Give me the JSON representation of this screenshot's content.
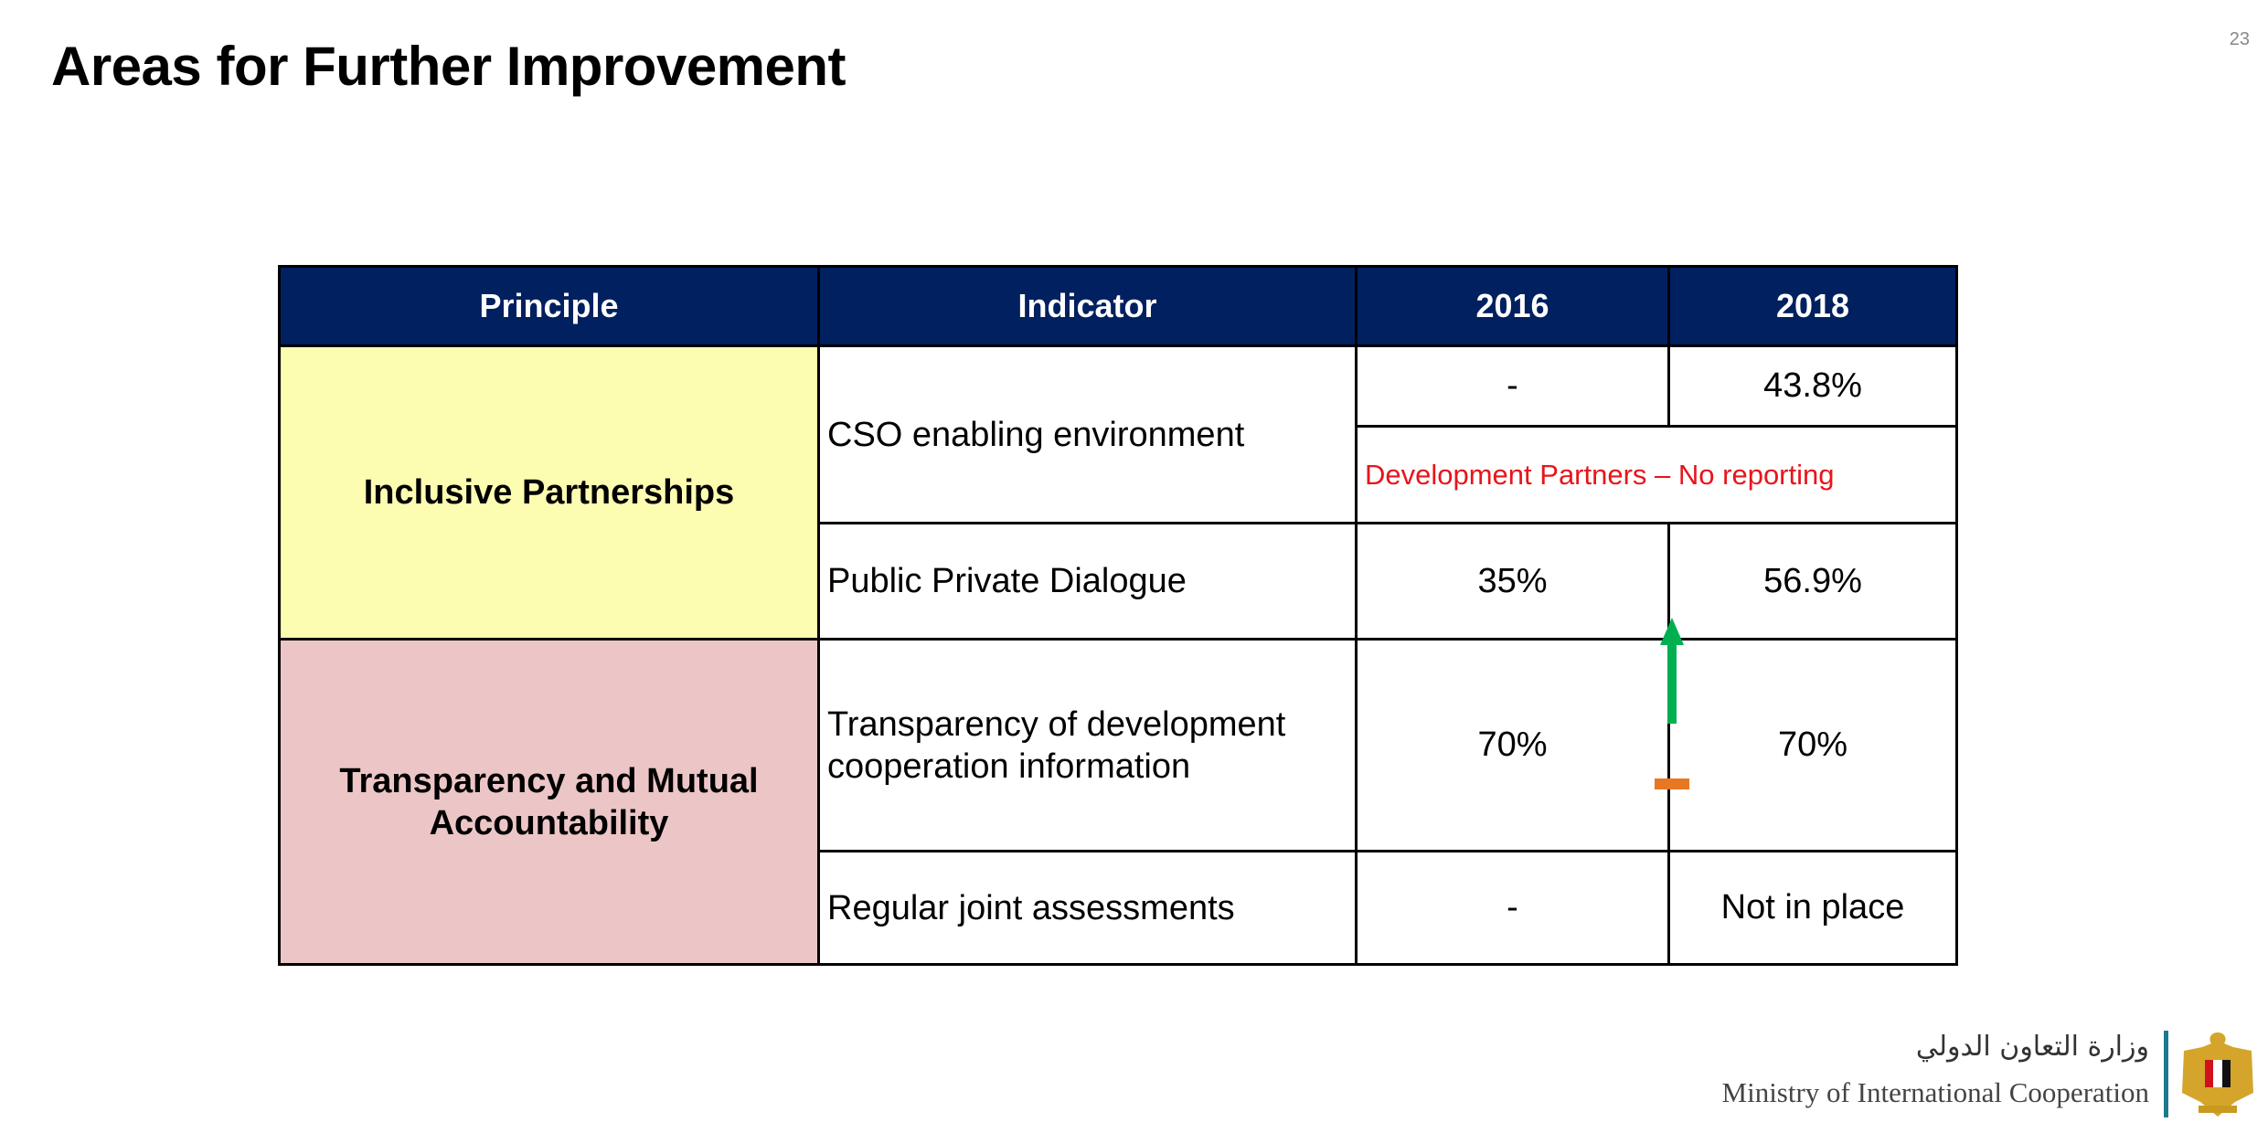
{
  "page_number": "23",
  "title": "Areas for Further Improvement",
  "table": {
    "headers": [
      "Principle",
      "Indicator",
      "2016",
      "2018"
    ],
    "principles": [
      "Inclusive Partnerships",
      "Transparency and Mutual Accountability"
    ],
    "rows": [
      {
        "indicator": "CSO enabling environment",
        "v2016": "-",
        "v2018": "43.8%",
        "note": "Development Partners – No reporting"
      },
      {
        "indicator": "Public Private Dialogue",
        "v2016": "35%",
        "v2018": "56.9%",
        "trend": "up-arrow-icon",
        "trend_color": "#00b050"
      },
      {
        "indicator": "Transparency of development cooperation information",
        "v2016": "70%",
        "v2018": "70%",
        "trend": "dash-icon",
        "trend_color": "#e87722"
      },
      {
        "indicator": "Regular joint assessments",
        "v2016": "-",
        "v2018": "Not in place"
      }
    ],
    "colors": {
      "header": "#002060",
      "inclusive": "#fdfdb1",
      "transparency": "#ecc6c6",
      "note": "#e8151b"
    }
  },
  "footer": {
    "arabic": "وزارة التعاون الدولي",
    "english": "Ministry of International Cooperation",
    "logo": "egypt-eagle-emblem"
  }
}
